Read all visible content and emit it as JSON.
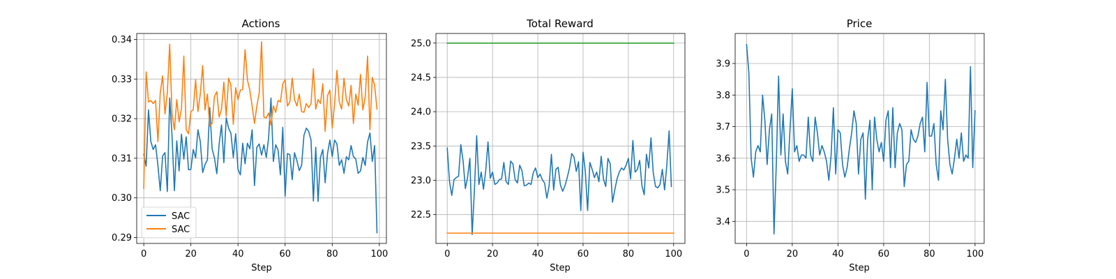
{
  "chart_data": [
    {
      "type": "line",
      "title": "Actions",
      "xlabel": "Step",
      "ylabel": "",
      "xlim": [
        -3,
        103
      ],
      "ylim": [
        0.2885,
        0.3415
      ],
      "xticks": [
        0,
        20,
        40,
        60,
        80,
        100
      ],
      "yticks": [
        0.29,
        0.3,
        0.31,
        0.32,
        0.33,
        0.34
      ],
      "ytick_format": 2,
      "grid": true,
      "legend": {
        "placement": "lower-left",
        "entries": [
          "SAC",
          "SAC"
        ]
      },
      "series": [
        {
          "name": "SAC",
          "color": "#1f77b4",
          "x_start": 0,
          "values": [
            0.311,
            0.308,
            0.3222,
            0.3142,
            0.3122,
            0.3134,
            0.3082,
            0.3018,
            0.3106,
            0.3114,
            0.3016,
            0.3252,
            0.3156,
            0.3018,
            0.3144,
            0.3068,
            0.3161,
            0.3098,
            0.3154,
            0.3071,
            0.3072,
            0.3122,
            0.3101,
            0.3172,
            0.3142,
            0.3064,
            0.3084,
            0.3096,
            0.3228,
            0.3124,
            0.3101,
            0.3061,
            0.3136,
            0.3184,
            0.3089,
            0.3202,
            0.3176,
            0.3163,
            0.3102,
            0.3162,
            0.3072,
            0.3058,
            0.3138,
            0.3086,
            0.3138,
            0.3124,
            0.3172,
            0.3031,
            0.3128,
            0.3136,
            0.3108,
            0.3134,
            0.3102,
            0.3152,
            0.3252,
            0.3092,
            0.3134,
            0.3121,
            0.3058,
            0.3178,
            0.3004,
            0.3112,
            0.3109,
            0.3046,
            0.3114,
            0.3094,
            0.3069,
            0.3082,
            0.3158,
            0.3176,
            0.3168,
            0.3146,
            0.2992,
            0.3128,
            0.2991,
            0.3102,
            0.3122,
            0.3038,
            0.3112,
            0.3146,
            0.3104,
            0.3146,
            0.3136,
            0.3082,
            0.3096,
            0.3062,
            0.3104,
            0.3096,
            0.3132,
            0.3104,
            0.3098,
            0.3062,
            0.3068,
            0.3102,
            0.3082,
            0.3141,
            0.3164,
            0.3092,
            0.3132,
            0.2912
          ]
        },
        {
          "name": "SAC",
          "color": "#ff7f0e",
          "x_start": 0,
          "values": [
            0.3024,
            0.3318,
            0.3242,
            0.3246,
            0.3238,
            0.3246,
            0.3142,
            0.3266,
            0.3308,
            0.3212,
            0.3266,
            0.3388,
            0.3212,
            0.3172,
            0.3248,
            0.3192,
            0.3226,
            0.3358,
            0.3172,
            0.3162,
            0.3218,
            0.3222,
            0.3298,
            0.3218,
            0.3262,
            0.3334,
            0.3222,
            0.3262,
            0.3181,
            0.3188,
            0.3256,
            0.3268,
            0.3204,
            0.3224,
            0.3292,
            0.3206,
            0.3302,
            0.3284,
            0.3186,
            0.3278,
            0.3248,
            0.3272,
            0.3274,
            0.3374,
            0.3298,
            0.3272,
            0.3232,
            0.3188,
            0.3232,
            0.3264,
            0.3394,
            0.3204,
            0.3202,
            0.3214,
            0.3184,
            0.3232,
            0.3216,
            0.3246,
            0.3242,
            0.3288,
            0.3298,
            0.3232,
            0.3242,
            0.3302,
            0.3248,
            0.3232,
            0.3262,
            0.3218,
            0.3216,
            0.3238,
            0.3228,
            0.3238,
            0.3326,
            0.3224,
            0.3248,
            0.3238,
            0.3288,
            0.3168,
            0.3258,
            0.3272,
            0.3176,
            0.3238,
            0.3322,
            0.3242,
            0.3224,
            0.3302,
            0.3248,
            0.3232,
            0.3284,
            0.3188,
            0.3262,
            0.3234,
            0.3312,
            0.3222,
            0.3254,
            0.3358,
            0.3172,
            0.3304,
            0.3284,
            0.3224
          ]
        }
      ]
    },
    {
      "type": "line",
      "title": "Total Reward",
      "xlabel": "Step",
      "ylabel": "",
      "xlim": [
        -5,
        105
      ],
      "ylim": [
        22.08,
        25.14
      ],
      "xticks": [
        0,
        20,
        40,
        60,
        80,
        100
      ],
      "yticks": [
        22.5,
        23.0,
        23.5,
        24.0,
        24.5,
        25.0
      ],
      "ytick_format": 1,
      "grid": true,
      "legend": null,
      "series": [
        {
          "color": "#1f77b4",
          "x_start": 0,
          "values": [
            23.47,
            22.98,
            22.78,
            23.01,
            23.04,
            23.06,
            23.52,
            23.28,
            22.88,
            23.05,
            23.32,
            22.21,
            22.86,
            23.65,
            22.94,
            23.12,
            22.87,
            23.14,
            23.56,
            23.03,
            23.12,
            22.94,
            22.96,
            23.01,
            23.02,
            23.26,
            22.98,
            22.94,
            23.28,
            23.24,
            23.01,
            22.96,
            23.22,
            23.14,
            22.92,
            22.93,
            22.96,
            22.94,
            23.11,
            23.18,
            23.04,
            23.09,
            23.01,
            22.96,
            22.74,
            22.92,
            23.38,
            22.86,
            23.16,
            23.19,
            22.93,
            22.84,
            22.92,
            23.04,
            23.18,
            23.39,
            23.34,
            23.13,
            23.27,
            22.56,
            23.41,
            23.12,
            22.56,
            23.26,
            23.16,
            23.04,
            23.12,
            22.98,
            23.35,
            23.02,
            22.91,
            23.32,
            23.24,
            22.68,
            22.86,
            23.02,
            23.12,
            23.18,
            23.15,
            23.22,
            23.32,
            23.02,
            23.58,
            23.12,
            23.16,
            23.29,
            22.92,
            22.79,
            23.38,
            23.18,
            23.62,
            23.11,
            22.91,
            22.89,
            22.94,
            23.16,
            22.86,
            23.22,
            23.72,
            22.91
          ]
        },
        {
          "color": "#2ca02c",
          "x": [
            0,
            100
          ],
          "values": [
            25.0,
            25.0
          ]
        },
        {
          "color": "#ff7f0e",
          "x": [
            0,
            100
          ],
          "values": [
            22.23,
            22.23
          ]
        }
      ]
    },
    {
      "type": "line",
      "title": "Price",
      "xlabel": "Step",
      "ylabel": "",
      "xlim": [
        -5,
        104
      ],
      "ylim": [
        3.33,
        3.995
      ],
      "xticks": [
        0,
        20,
        40,
        60,
        80,
        100
      ],
      "yticks": [
        3.4,
        3.5,
        3.6,
        3.7,
        3.8,
        3.9
      ],
      "ytick_format": 1,
      "grid": true,
      "legend": null,
      "series": [
        {
          "color": "#1f77b4",
          "x_start": 0,
          "values": [
            3.96,
            3.87,
            3.6,
            3.54,
            3.62,
            3.64,
            3.62,
            3.8,
            3.72,
            3.58,
            3.69,
            3.74,
            3.36,
            3.58,
            3.86,
            3.61,
            3.74,
            3.59,
            3.55,
            3.69,
            3.82,
            3.62,
            3.64,
            3.59,
            3.61,
            3.61,
            3.6,
            3.73,
            3.61,
            3.59,
            3.73,
            3.68,
            3.61,
            3.64,
            3.62,
            3.59,
            3.53,
            3.61,
            3.76,
            3.55,
            3.69,
            3.68,
            3.58,
            3.54,
            3.57,
            3.63,
            3.68,
            3.75,
            3.71,
            3.55,
            3.66,
            3.68,
            3.47,
            3.66,
            3.72,
            3.5,
            3.73,
            3.66,
            3.62,
            3.65,
            3.59,
            3.72,
            3.75,
            3.57,
            3.76,
            3.57,
            3.68,
            3.71,
            3.69,
            3.51,
            3.58,
            3.59,
            3.69,
            3.66,
            3.65,
            3.67,
            3.71,
            3.73,
            3.62,
            3.84,
            3.67,
            3.67,
            3.71,
            3.58,
            3.53,
            3.75,
            3.69,
            3.85,
            3.66,
            3.58,
            3.55,
            3.6,
            3.66,
            3.6,
            3.68,
            3.59,
            3.61,
            3.6,
            3.89,
            3.57,
            3.75
          ]
        }
      ]
    }
  ]
}
